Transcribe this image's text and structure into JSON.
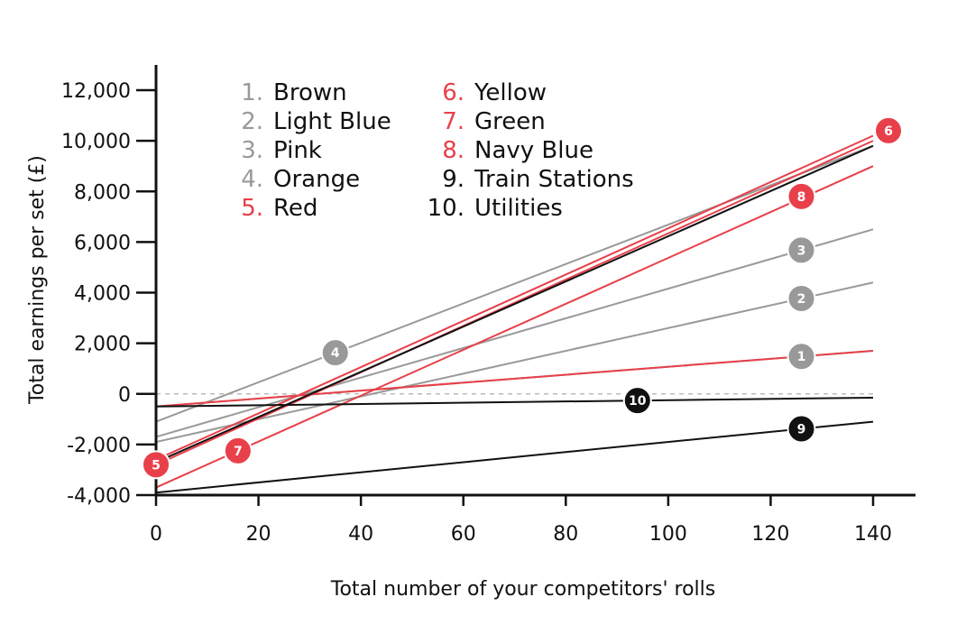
{
  "chart_data": {
    "type": "line",
    "title": "",
    "xlabel": "Total number of your competitors' rolls",
    "ylabel": "Total earnings per set (£)",
    "xlim": [
      0,
      140
    ],
    "ylim": [
      -4000,
      12000
    ],
    "x_ticks": [
      0,
      20,
      40,
      60,
      80,
      100,
      120,
      140
    ],
    "y_ticks": [
      -4000,
      -2000,
      0,
      2000,
      4000,
      6000,
      8000,
      10000,
      12000
    ],
    "x_tick_labels": [
      "0",
      "20",
      "40",
      "60",
      "80",
      "100",
      "120",
      "140"
    ],
    "y_tick_labels": [
      "-4,000",
      "-2,000",
      "0",
      "2,000",
      "4,000",
      "6,000",
      "8,000",
      "10,000",
      "12,000"
    ],
    "zero_line": "dashed",
    "grid": false,
    "legend_placement": "top-left",
    "series": [
      {
        "name": "Brown",
        "number": "1",
        "number_label": "1.",
        "color": "#999999",
        "x": [
          0,
          140
        ],
        "values": [
          -500,
          1700
        ],
        "marker_x": 126,
        "marker_label": "1"
      },
      {
        "name": "Light Blue",
        "number": "2",
        "number_label": "2.",
        "color": "#999999",
        "x": [
          0,
          140
        ],
        "values": [
          -1900,
          4400
        ],
        "marker_x": 126,
        "marker_label": "2"
      },
      {
        "name": "Pink",
        "number": "3",
        "number_label": "3.",
        "color": "#999999",
        "x": [
          0,
          140
        ],
        "values": [
          -1700,
          6500
        ],
        "marker_x": 126,
        "marker_label": "3"
      },
      {
        "name": "Orange",
        "number": "4",
        "number_label": "4.",
        "color": "#999999",
        "x": [
          0,
          140
        ],
        "values": [
          -1100,
          9800
        ],
        "marker_x": 35,
        "marker_label": "4"
      },
      {
        "name": "Red",
        "number": "5",
        "number_label": "5.",
        "color": "#e8404a",
        "x": [
          0,
          140
        ],
        "values": [
          -2800,
          10000
        ],
        "marker_x": 0,
        "marker_label": "5"
      },
      {
        "name": "Yellow",
        "number": "6",
        "number_label": "6.",
        "color": "#e8404a",
        "x": [
          0,
          140
        ],
        "values": [
          -2600,
          10200
        ],
        "marker_x": 143,
        "marker_y": 10400,
        "marker_label": "6"
      },
      {
        "name": "Green",
        "number": "7",
        "number_label": "7.",
        "color": "#e8404a",
        "x": [
          0,
          140
        ],
        "values": [
          -3700,
          9000
        ],
        "marker_x": 16,
        "marker_label": "7"
      },
      {
        "name": "Navy Blue",
        "number": "8",
        "number_label": "8.",
        "color": "#e8404a",
        "x": [
          0,
          140
        ],
        "values": [
          -500,
          1700
        ],
        "marker_x": 126,
        "marker_y": 7800,
        "marker_label": "8"
      },
      {
        "name": "Train Stations",
        "number": "9",
        "number_label": "9.",
        "color": "#111111",
        "x": [
          0,
          140
        ],
        "values": [
          -3900,
          -1100
        ],
        "marker_x": 126,
        "marker_label": "9"
      },
      {
        "name": "Utilities",
        "number": "10",
        "number_label": "10.",
        "color": "#111111",
        "x": [
          0,
          140
        ],
        "values": [
          -500,
          -150
        ],
        "marker_x": 94,
        "marker_label": "10"
      },
      {
        "name": "",
        "number": "",
        "number_label": "",
        "color": "#111111",
        "x": [
          0,
          140
        ],
        "values": [
          -2700,
          9800
        ],
        "marker_x": null,
        "marker_label": ""
      }
    ],
    "legend_columns": [
      [
        0,
        1,
        2,
        3,
        4
      ],
      [
        5,
        6,
        7,
        8,
        9
      ]
    ]
  }
}
